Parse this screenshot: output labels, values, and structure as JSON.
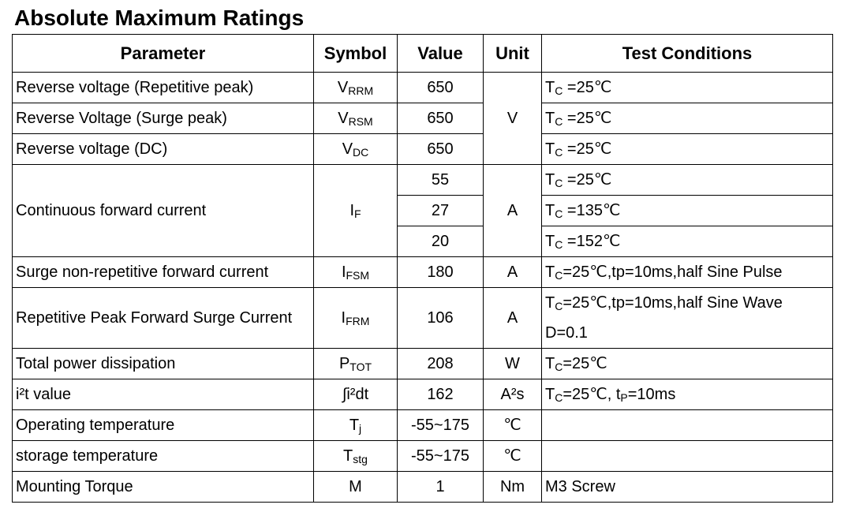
{
  "title": "Absolute Maximum Ratings",
  "table": {
    "headers": [
      "Parameter",
      "Symbol",
      "Value",
      "Unit",
      "Test Conditions"
    ],
    "rows": [
      {
        "parameter": "Reverse voltage (Repetitive peak)",
        "symbol": [
          "V",
          "RRM"
        ],
        "value": 650,
        "unit": "V",
        "condition": [
          "T",
          "C",
          " =25℃"
        ]
      },
      {
        "parameter": "Reverse Voltage (Surge peak)",
        "symbol": [
          "V",
          "RSM"
        ],
        "value": 650,
        "condition": [
          "T",
          "C",
          " =25℃"
        ]
      },
      {
        "parameter": "Reverse voltage (DC)",
        "symbol": [
          "V",
          "DC"
        ],
        "value": 650,
        "condition": [
          "T",
          "C",
          " =25℃"
        ]
      },
      {
        "parameter": "Continuous forward current",
        "symbol": [
          "I",
          "F"
        ],
        "value": [
          55,
          27,
          20
        ],
        "unit": "A",
        "condition": [
          [
            "T",
            "C",
            " =25℃"
          ],
          [
            "T",
            "C",
            " =135℃"
          ],
          [
            "T",
            "C",
            " =152℃"
          ]
        ]
      },
      {
        "parameter": "Surge non-repetitive forward current",
        "symbol": [
          "I",
          "FSM"
        ],
        "value": 180,
        "unit": "A",
        "condition": [
          "T",
          "C",
          "=25℃,tp=10ms,half Sine Pulse"
        ]
      },
      {
        "parameter": "Repetitive Peak Forward Surge Current",
        "symbol": [
          "I",
          "FRM"
        ],
        "value": 106,
        "unit": "A",
        "condition": [
          "T",
          "C",
          "=25℃,tp=10ms,half Sine Wave D=0.1"
        ]
      },
      {
        "parameter": "Total power dissipation",
        "symbol": [
          "P",
          "TOT"
        ],
        "value": 208,
        "unit": "W",
        "condition": [
          "T",
          "C",
          "=25℃"
        ]
      },
      {
        "parameter": "i²t value",
        "symbol": "∫i²dt",
        "value": 162,
        "unit": "A²s",
        "condition": [
          "T",
          "C",
          "=25℃, t",
          "P",
          "=10ms"
        ]
      },
      {
        "parameter": "Operating temperature",
        "symbol": [
          "T",
          "j"
        ],
        "value": "-55~175",
        "unit": "℃"
      },
      {
        "parameter": "storage temperature",
        "symbol": [
          "T",
          "stg"
        ],
        "value": "-55~175",
        "unit": "℃"
      },
      {
        "parameter": "Mounting Torque",
        "symbol": "M",
        "value": 1,
        "unit": "Nm",
        "condition": "M3 Screw"
      }
    ]
  }
}
